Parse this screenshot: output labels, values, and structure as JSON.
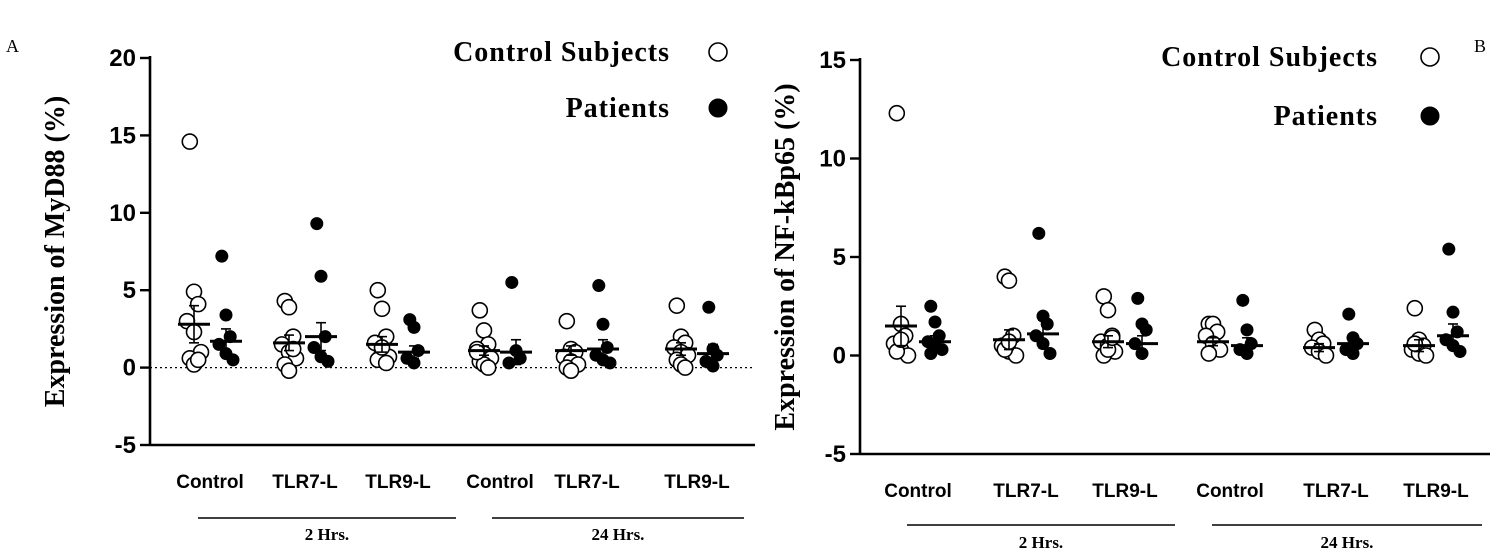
{
  "chart_data": [
    {
      "type": "scatter",
      "panel_label": "A",
      "ylabel": "Expression of MyD88 (%)",
      "ylim": [
        -5,
        20
      ],
      "yticks": [
        -5,
        0,
        5,
        10,
        15,
        20
      ],
      "ytick_labels": [
        "-5",
        "0",
        "5",
        "10",
        "15",
        "20"
      ],
      "zero_line": "dotted",
      "categories": [
        "Control",
        "TLR7-L",
        "TLR9-L",
        "Control",
        "TLR7-L",
        "TLR9-L"
      ],
      "groups": [
        {
          "label": "2 Hrs.",
          "categories": [
            0,
            1,
            2
          ]
        },
        {
          "label": "24 Hrs.",
          "categories": [
            3,
            4,
            5
          ]
        }
      ],
      "legend": {
        "position": "top-right",
        "entries": [
          {
            "label": "Control Subjects",
            "marker": "open-circle"
          },
          {
            "label": "Patients",
            "marker": "filled-circle"
          }
        ]
      },
      "series": [
        {
          "name": "Control Subjects",
          "marker": "open-circle",
          "points": [
            [
              14.6,
              4.9,
              4.1,
              3.0,
              2.3,
              1.0,
              0.6,
              0.2,
              0.5
            ],
            [
              4.3,
              3.9,
              2.0,
              1.5,
              1.0,
              0.6,
              0.2,
              -0.2,
              1.2
            ],
            [
              5.0,
              3.8,
              2.0,
              1.6,
              1.0,
              0.7,
              0.5,
              1.3,
              0.3
            ],
            [
              3.7,
              2.4,
              1.5,
              1.2,
              0.9,
              0.6,
              0.4,
              0.2,
              0.0,
              1.0
            ],
            [
              3.0,
              1.2,
              1.0,
              0.7,
              0.4,
              0.2,
              0.0,
              -0.2
            ],
            [
              4.0,
              2.0,
              1.6,
              1.3,
              1.0,
              0.8,
              0.5,
              0.2,
              0.0
            ]
          ],
          "means": [
            2.8,
            1.6,
            1.5,
            1.1,
            1.1,
            1.2
          ],
          "sem": [
            1.2,
            0.5,
            0.5,
            0.3,
            0.3,
            0.4
          ]
        },
        {
          "name": "Patients",
          "marker": "filled-circle",
          "points": [
            [
              7.2,
              3.4,
              2.0,
              1.5,
              0.9,
              0.5
            ],
            [
              9.3,
              5.9,
              2.0,
              1.3,
              0.7,
              0.4
            ],
            [
              3.1,
              2.6,
              1.1,
              0.6,
              0.3
            ],
            [
              5.5,
              1.1,
              0.6,
              0.3
            ],
            [
              5.3,
              2.8,
              1.3,
              0.8,
              0.5,
              0.3
            ],
            [
              3.9,
              1.2,
              0.8,
              0.4,
              0.1
            ]
          ],
          "means": [
            1.7,
            2.0,
            1.0,
            1.0,
            1.2,
            0.9
          ],
          "sem": [
            0.8,
            0.9,
            0.4,
            0.8,
            0.6,
            0.6
          ]
        }
      ]
    },
    {
      "type": "scatter",
      "panel_label": "B",
      "ylabel": "Expression of NF-kBp65 (%)",
      "ylim": [
        -5,
        15
      ],
      "yticks": [
        -5,
        0,
        5,
        10,
        15
      ],
      "ytick_labels": [
        "-5",
        "0",
        "5",
        "10",
        "15"
      ],
      "zero_line": "none",
      "categories": [
        "Control",
        "TLR7-L",
        "TLR9-L",
        "Control",
        "TLR7-L",
        "TLR9-L"
      ],
      "groups": [
        {
          "label": "2 Hrs.",
          "categories": [
            0,
            1,
            2
          ]
        },
        {
          "label": "24 Hrs.",
          "categories": [
            3,
            4,
            5
          ]
        }
      ],
      "legend": {
        "position": "top-right",
        "entries": [
          {
            "label": "Control Subjects",
            "marker": "open-circle"
          },
          {
            "label": "Patients",
            "marker": "filled-circle"
          }
        ]
      },
      "series": [
        {
          "name": "Control Subjects",
          "marker": "open-circle",
          "points": [
            [
              12.3,
              1.6,
              1.0,
              0.6,
              0.3,
              0.0,
              0.2,
              0.8
            ],
            [
              4.0,
              3.8,
              1.0,
              0.5,
              0.2,
              0.0,
              0.3,
              0.7
            ],
            [
              3.0,
              2.3,
              1.0,
              0.7,
              0.5,
              0.2,
              0.0,
              0.3,
              0.9
            ],
            [
              1.6,
              1.6,
              1.2,
              1.0,
              0.6,
              0.3,
              0.1
            ],
            [
              1.3,
              0.8,
              0.6,
              0.4,
              0.2,
              0.0
            ],
            [
              2.4,
              0.8,
              0.5,
              0.3,
              0.1,
              0.0,
              0.6
            ]
          ],
          "means": [
            1.5,
            0.8,
            0.7,
            0.7,
            0.4,
            0.5
          ],
          "sem": [
            1.0,
            0.5,
            0.3,
            0.2,
            0.2,
            0.3
          ]
        },
        {
          "name": "Patients",
          "marker": "filled-circle",
          "points": [
            [
              2.5,
              1.7,
              1.0,
              0.7,
              0.5,
              0.3,
              0.1
            ],
            [
              6.2,
              2.0,
              1.6,
              1.0,
              0.6,
              0.1
            ],
            [
              2.9,
              1.6,
              1.3,
              0.6,
              0.1
            ],
            [
              2.8,
              1.3,
              0.6,
              0.3,
              0.1
            ],
            [
              2.1,
              0.9,
              0.6,
              0.3,
              0.1
            ],
            [
              5.4,
              2.2,
              1.2,
              0.8,
              0.5,
              0.2
            ]
          ],
          "means": [
            0.7,
            1.1,
            0.6,
            0.5,
            0.6,
            1.0
          ],
          "sem": [
            0.3,
            0.7,
            0.4,
            0.4,
            0.3,
            0.6
          ]
        }
      ]
    }
  ]
}
